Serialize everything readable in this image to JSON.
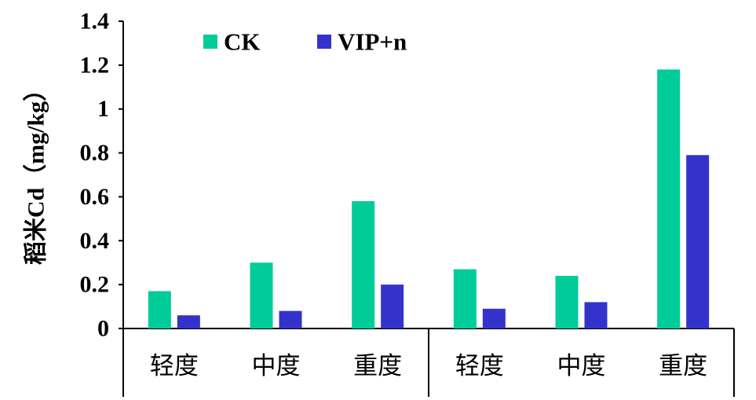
{
  "chart_data": {
    "type": "bar",
    "categories": [
      "轻度",
      "中度",
      "重度",
      "轻度",
      "中度",
      "重度"
    ],
    "series": [
      {
        "name": "CK",
        "color": "#00CC99",
        "values": [
          0.17,
          0.3,
          0.58,
          0.27,
          0.24,
          1.18
        ]
      },
      {
        "name": "VIP+n",
        "color": "#3333CC",
        "values": [
          0.06,
          0.08,
          0.2,
          0.09,
          0.12,
          0.79
        ]
      }
    ],
    "ylabel": "稻米Cd（mg/kg）",
    "xlabel": "",
    "ylim": [
      0,
      1.4
    ],
    "yticks": [
      "0",
      "0.2",
      "0.4",
      "0.6",
      "0.8",
      "1",
      "1.2",
      "1.4"
    ],
    "grid": false,
    "legend_position": "top-left"
  }
}
